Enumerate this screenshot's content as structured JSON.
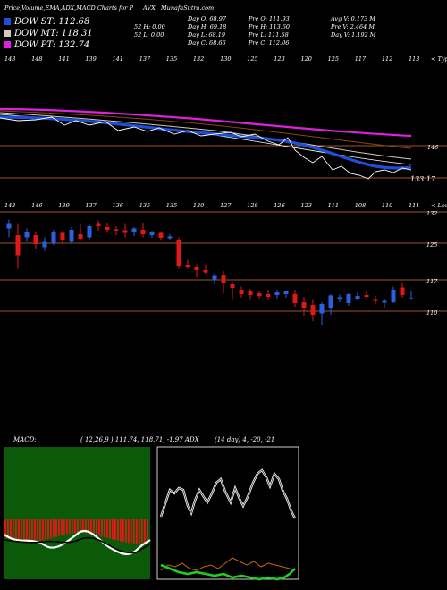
{
  "header": {
    "title": "Price,Volume,EMA,ADX,MACD Charts for P",
    "symbol": "AVX",
    "site": "MunafaSutra.com"
  },
  "dow_legend": [
    {
      "label": "DOW ST: 112.68",
      "color": "#1f4fd8"
    },
    {
      "label": "DOW MT: 118.31",
      "color": "#d5c9b8"
    },
    {
      "label": "DOW PT: 132.74",
      "color": "#e020e0"
    }
  ],
  "stats": {
    "col1": [
      "52  H: 0.00",
      "52  L: 0.00"
    ],
    "col2": [
      "Day O: 68.97",
      "Day H: 69.18",
      "Day L: 68.19",
      "Day C: 68.66"
    ],
    "col3": [
      "Pre   O: 111.93",
      "Pre   H: 113.60",
      "Pre   L: 111.58",
      "Pre   C: 112.06"
    ],
    "col4": [
      "Avg V: 0.173  M",
      "Pre   V: 2.464  M",
      "Day V: 1.192  M"
    ]
  },
  "panel1": {
    "top_labels": [
      "143",
      "148",
      "141",
      "139",
      "141",
      "137",
      "135",
      "132",
      "130",
      "125",
      "123",
      "120",
      "125",
      "117",
      "112",
      "113"
    ],
    "right_labels": [
      "146",
      "133.17"
    ],
    "corner_label": "< Type"
  },
  "panel2": {
    "top_labels": [
      "143",
      "146",
      "139",
      "137",
      "136",
      "135",
      "135",
      "130",
      "127",
      "128",
      "126",
      "123",
      "111",
      "108",
      "110",
      "111"
    ],
    "corner_label": "< Loum",
    "price_labels": [
      "132",
      "125",
      "117",
      "110"
    ]
  },
  "macd": {
    "label": "MACD:",
    "values": "( 12,26,9 ) 111.74,  118.71,  -1.97 ADX"
  },
  "adx": {
    "values": "(14  day) 4,  -20,  -21"
  },
  "colors": {
    "up": "#2c5fe0",
    "down": "#e01818",
    "ema_short": "#1f4fd8",
    "ema_long": "#e020e0",
    "price_line": "#ffffff",
    "guide": "#a0522d",
    "macd_bg": "#0a5a0a",
    "adx_orange": "#c86414",
    "adx_green": "#22cc22"
  },
  "chart_data": [
    {
      "type": "line",
      "name": "price_ema_panel",
      "series": [
        {
          "name": "DOW PT",
          "values": [
            132.74
          ]
        },
        {
          "name": "DOW MT",
          "values": [
            118.31
          ]
        },
        {
          "name": "DOW ST",
          "values": [
            112.68
          ]
        }
      ],
      "right_axis_labels": [
        146,
        133.17
      ]
    },
    {
      "type": "candlestick",
      "name": "price_panel",
      "price_axis": [
        132,
        125,
        117,
        110
      ],
      "candles": [
        {
          "o": 128.5,
          "h": 130.5,
          "l": 126.5,
          "c": 129.5
        },
        {
          "o": 127.0,
          "h": 129.5,
          "l": 119.5,
          "c": 122.5
        },
        {
          "o": 126.5,
          "h": 128.5,
          "l": 125.5,
          "c": 127.8
        },
        {
          "o": 127.0,
          "h": 127.6,
          "l": 124.0,
          "c": 125.0
        },
        {
          "o": 124.3,
          "h": 126.5,
          "l": 123.5,
          "c": 125.5
        },
        {
          "o": 125.2,
          "h": 128.2,
          "l": 124.8,
          "c": 127.8
        },
        {
          "o": 127.5,
          "h": 128.0,
          "l": 125.0,
          "c": 125.8
        },
        {
          "o": 125.5,
          "h": 128.8,
          "l": 125.0,
          "c": 128.2
        },
        {
          "o": 127.2,
          "h": 129.5,
          "l": 125.8,
          "c": 126.2
        },
        {
          "o": 126.5,
          "h": 129.3,
          "l": 125.8,
          "c": 129.0
        },
        {
          "o": 129.5,
          "h": 130.3,
          "l": 128.0,
          "c": 129.0
        },
        {
          "o": 128.8,
          "h": 129.8,
          "l": 127.5,
          "c": 128.2
        },
        {
          "o": 128.3,
          "h": 129.0,
          "l": 127.0,
          "c": 128.0
        },
        {
          "o": 128.1,
          "h": 129.5,
          "l": 126.5,
          "c": 127.5
        },
        {
          "o": 127.6,
          "h": 128.8,
          "l": 126.8,
          "c": 128.5
        },
        {
          "o": 128.2,
          "h": 129.6,
          "l": 126.5,
          "c": 127.2
        },
        {
          "o": 127.0,
          "h": 128.0,
          "l": 126.4,
          "c": 127.6
        },
        {
          "o": 127.5,
          "h": 127.8,
          "l": 126.0,
          "c": 126.4
        },
        {
          "o": 126.3,
          "h": 127.2,
          "l": 125.8,
          "c": 126.7
        },
        {
          "o": 125.8,
          "h": 126.5,
          "l": 119.5,
          "c": 120.0
        },
        {
          "o": 120.3,
          "h": 121.5,
          "l": 119.5,
          "c": 119.8
        },
        {
          "o": 119.8,
          "h": 120.5,
          "l": 117.5,
          "c": 119.2
        },
        {
          "o": 119.2,
          "h": 120.3,
          "l": 118.2,
          "c": 118.7
        },
        {
          "o": 117.0,
          "h": 118.5,
          "l": 116.0,
          "c": 117.9
        },
        {
          "o": 118.0,
          "h": 119.0,
          "l": 114.0,
          "c": 116.2
        },
        {
          "o": 116.0,
          "h": 116.5,
          "l": 112.5,
          "c": 115.2
        },
        {
          "o": 114.8,
          "h": 115.5,
          "l": 113.0,
          "c": 113.8
        },
        {
          "o": 114.5,
          "h": 115.0,
          "l": 112.5,
          "c": 113.6
        },
        {
          "o": 114.0,
          "h": 114.6,
          "l": 112.8,
          "c": 113.4
        },
        {
          "o": 113.8,
          "h": 114.8,
          "l": 112.5,
          "c": 113.2
        },
        {
          "o": 113.6,
          "h": 114.8,
          "l": 112.6,
          "c": 114.2
        },
        {
          "o": 113.8,
          "h": 114.5,
          "l": 113.0,
          "c": 114.4
        },
        {
          "o": 113.8,
          "h": 114.8,
          "l": 111.0,
          "c": 111.8
        },
        {
          "o": 112.0,
          "h": 113.2,
          "l": 109.0,
          "c": 110.8
        },
        {
          "o": 111.4,
          "h": 112.5,
          "l": 107.8,
          "c": 109.2
        },
        {
          "o": 109.5,
          "h": 112.0,
          "l": 107.0,
          "c": 111.6
        },
        {
          "o": 110.8,
          "h": 113.8,
          "l": 109.2,
          "c": 113.5
        },
        {
          "o": 112.8,
          "h": 113.7,
          "l": 112.0,
          "c": 113.1
        },
        {
          "o": 111.8,
          "h": 114.0,
          "l": 111.2,
          "c": 113.8
        },
        {
          "o": 112.8,
          "h": 114.2,
          "l": 112.3,
          "c": 113.4
        },
        {
          "o": 113.6,
          "h": 114.5,
          "l": 112.6,
          "c": 113.2
        },
        {
          "o": 112.5,
          "h": 113.4,
          "l": 111.5,
          "c": 112.3
        },
        {
          "o": 111.9,
          "h": 112.7,
          "l": 110.8,
          "c": 112.3
        },
        {
          "o": 112.0,
          "h": 115.5,
          "l": 111.8,
          "c": 114.8
        },
        {
          "o": 115.3,
          "h": 116.2,
          "l": 113.0,
          "c": 113.6
        },
        {
          "o": 112.8,
          "h": 114.6,
          "l": 112.5,
          "c": 112.9
        }
      ]
    },
    {
      "type": "bar",
      "name": "macd_histogram",
      "label": "MACD: ( 12,26,9 ) 111.74, 118.71, -1.97"
    },
    {
      "type": "line",
      "name": "adx",
      "label": "(14 day) 4, -20, -21"
    }
  ]
}
